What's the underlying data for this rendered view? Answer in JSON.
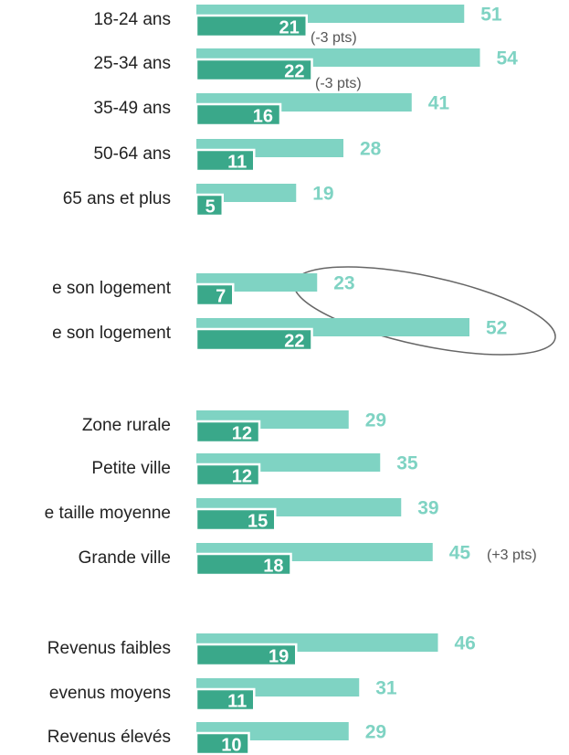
{
  "chart_data": {
    "type": "bar",
    "orientation": "horizontal",
    "categories": [
      "18-24 ans",
      "25-34 ans",
      "35-49 ans",
      "50-64 ans",
      "65 ans et plus",
      "e son logement",
      "e son logement",
      "Zone rurale",
      "Petite ville",
      "e taille moyenne",
      "Grande ville",
      "Revenus faibles",
      "evenus moyens",
      "Revenus élevés"
    ],
    "series": [
      {
        "color": "#7fd3c3",
        "values": [
          51,
          54,
          41,
          28,
          19,
          23,
          52,
          29,
          35,
          39,
          45,
          46,
          31,
          29
        ]
      },
      {
        "color": "#3aa88a",
        "values": [
          21,
          22,
          16,
          11,
          5,
          7,
          22,
          12,
          12,
          15,
          18,
          19,
          11,
          10
        ]
      }
    ],
    "annotations": [
      "(-3 pts)",
      "(-3 pts)",
      "(+3 pts)"
    ]
  }
}
